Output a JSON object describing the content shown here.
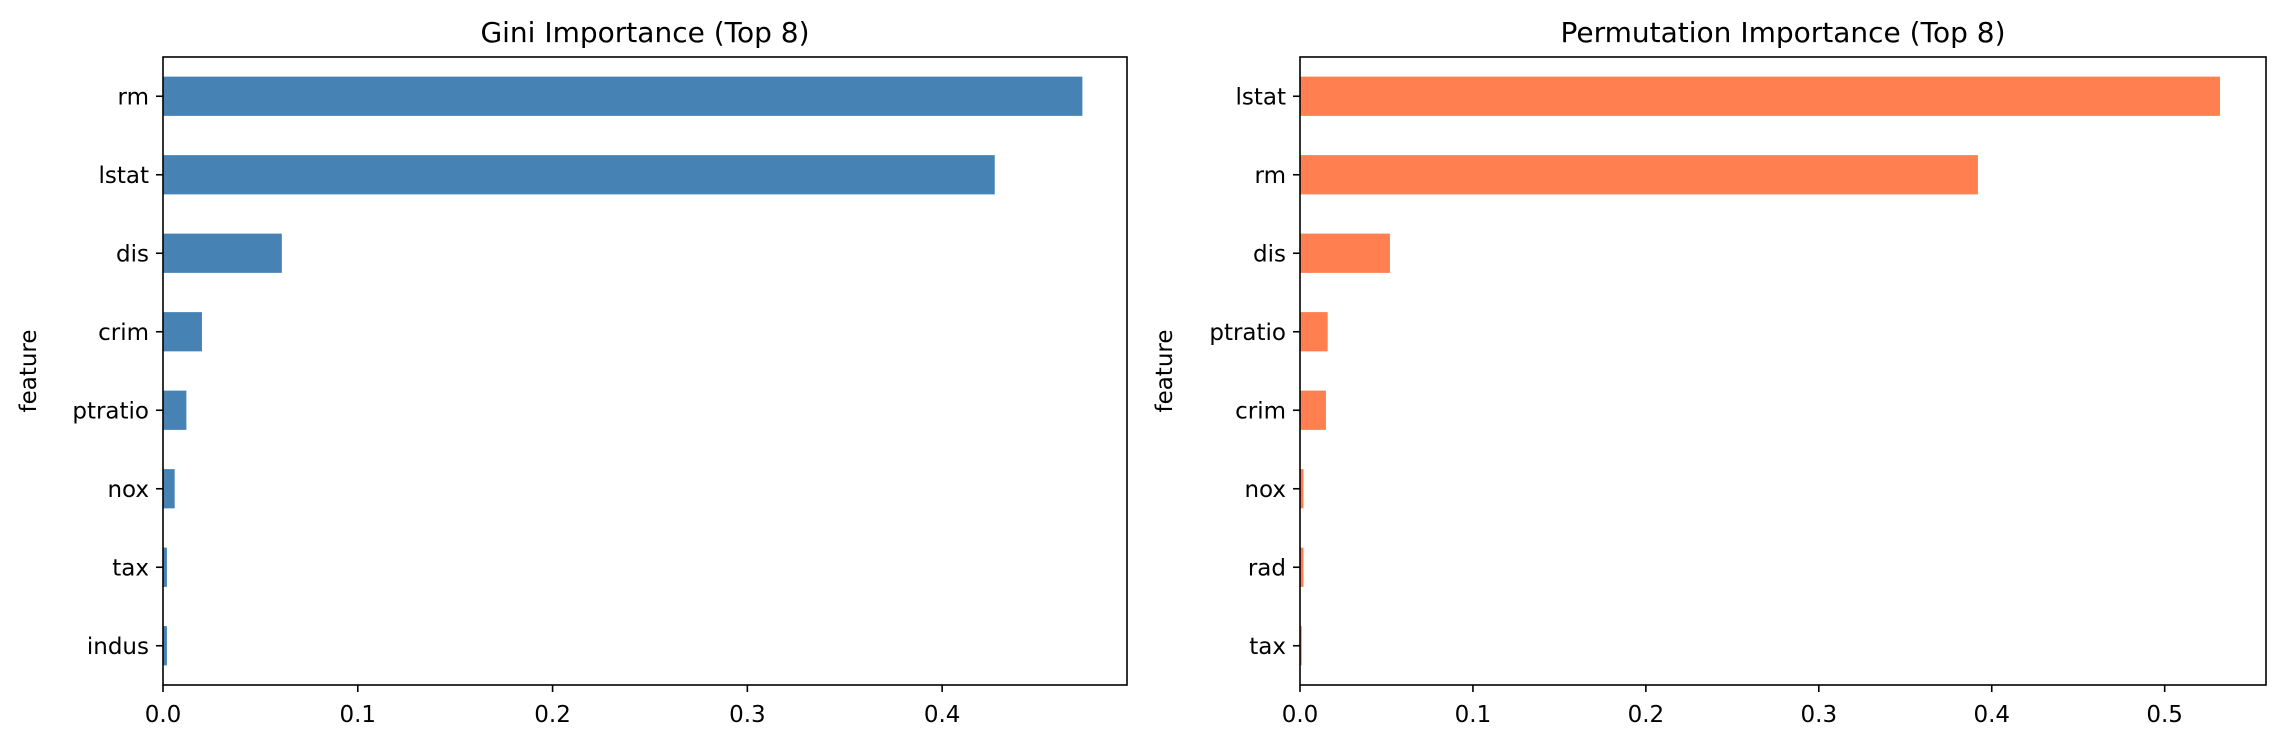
{
  "figure": {
    "background": "#ffffff"
  },
  "chart_data": [
    {
      "type": "bar",
      "orientation": "horizontal",
      "title": "Gini Importance (Top 8)",
      "xlabel": "",
      "ylabel": "feature",
      "categories": [
        "rm",
        "lstat",
        "dis",
        "crim",
        "ptratio",
        "nox",
        "tax",
        "indus"
      ],
      "values": [
        0.472,
        0.427,
        0.061,
        0.02,
        0.012,
        0.006,
        0.002,
        0.002
      ],
      "color": "#4682b4",
      "xlim": [
        0,
        0.4949
      ],
      "xticks": [
        "0.0",
        "0.1",
        "0.2",
        "0.3",
        "0.4"
      ],
      "xtick_values": [
        0,
        0.1,
        0.2,
        0.3,
        0.4
      ],
      "grid": false,
      "legend": "none"
    },
    {
      "type": "bar",
      "orientation": "horizontal",
      "title": "Permutation Importance (Top 8)",
      "xlabel": "",
      "ylabel": "feature",
      "categories": [
        "lstat",
        "rm",
        "dis",
        "ptratio",
        "crim",
        "nox",
        "rad",
        "tax"
      ],
      "values": [
        0.532,
        0.392,
        0.052,
        0.016,
        0.015,
        0.002,
        0.002,
        0.001
      ],
      "color": "#ff7f50",
      "xlim": [
        0,
        0.5586
      ],
      "xticks": [
        "0.0",
        "0.1",
        "0.2",
        "0.3",
        "0.4",
        "0.5"
      ],
      "xtick_values": [
        0,
        0.1,
        0.2,
        0.3,
        0.4,
        0.5
      ],
      "grid": false,
      "legend": "none"
    }
  ]
}
